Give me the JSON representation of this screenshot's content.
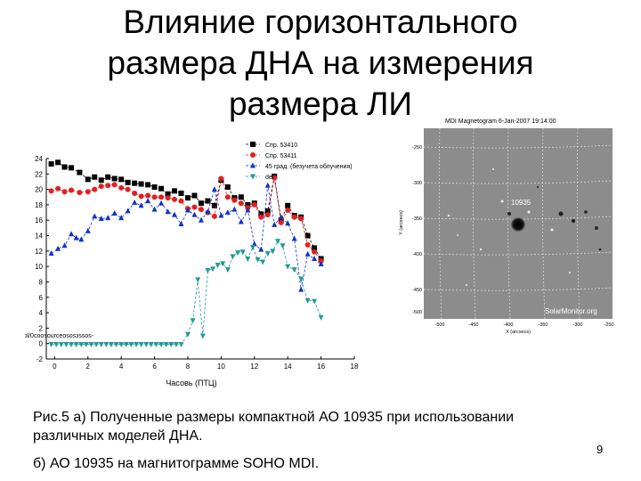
{
  "slide": {
    "title_lines": [
      "Влияние горизонтального",
      "размера ДНА  на измерения",
      "размера ЛИ"
    ],
    "caption_line1": "Рис.5 а) Полученные размеры компактной АО 10935 при использовании",
    "caption_line2": "различных моделей ДНА.",
    "caption_line3": "б) АО 10935 на магнитограмме SOHO MDI.",
    "page_number": "9"
  },
  "magnetogram": {
    "title": "MDI Magnetogram  6-Jan-2007 19:14:00",
    "region_label": "10935",
    "watermark": "SolarMonitor.org",
    "y_axis_label": "Y (arcsecs)",
    "x_axis_label": "X (arcsecs)",
    "y_ticks": [
      "-250",
      "-300",
      "-350",
      "-400",
      "-450",
      "-500"
    ],
    "x_ticks": [
      "-500",
      "-450",
      "-400",
      "-350",
      "-300",
      "-250"
    ]
  },
  "chart_data": {
    "type": "scatter",
    "xlabel": "Часовь (ПТЦ)",
    "ylabel": "",
    "xlim": [
      -0.5,
      18
    ],
    "ylim": [
      -2,
      24
    ],
    "x_ticks": [
      0,
      2,
      4,
      6,
      8,
      10,
      12,
      14,
      16,
      18
    ],
    "x_tick_labels": [
      "0",
      "2",
      "4",
      "6",
      "8",
      "10",
      "12",
      "14",
      "16",
      "18"
    ],
    "y_ticks": [
      -2,
      0,
      2,
      4,
      6,
      8,
      10,
      12,
      14,
      16,
      18,
      20,
      22,
      24
    ],
    "y_tick_labels": [
      "-2",
      "0",
      "2",
      "4",
      "6",
      "8",
      "10",
      "12",
      "14",
      "16",
      "18",
      "20",
      "22",
      "24"
    ],
    "legend_position": "top-right",
    "inline_label": "Sol/0сооsourceоsоsзssоs-",
    "series": [
      {
        "name": "Спр. 53410",
        "color": "#000000",
        "marker": "square",
        "x": [
          -0.2,
          0.2,
          0.6,
          1.0,
          1.5,
          2.0,
          2.4,
          2.8,
          3.2,
          3.6,
          4.0,
          4.4,
          4.8,
          5.2,
          5.6,
          6.0,
          6.4,
          6.8,
          7.2,
          7.6,
          8.0,
          8.4,
          8.8,
          9.2,
          9.6,
          10.0,
          10.4,
          10.8,
          11.2,
          11.6,
          12.0,
          12.4,
          12.8,
          13.2,
          13.6,
          14.0,
          14.4,
          14.8,
          15.2,
          15.6,
          16.0
        ],
        "y": [
          23.3,
          23.5,
          22.9,
          22.8,
          22.2,
          21.3,
          21.6,
          21.2,
          21.6,
          21.4,
          21.3,
          20.9,
          20.8,
          20.7,
          20.6,
          20.3,
          20.1,
          19.4,
          19.8,
          19.5,
          18.9,
          19.2,
          18.2,
          18.5,
          17.9,
          21.2,
          20.3,
          18.9,
          19.0,
          18.0,
          18.2,
          16.8,
          17.2,
          21.7,
          16.0,
          17.9,
          16.6,
          16.4,
          14.0,
          12.4,
          11.0
        ]
      },
      {
        "name": "Спр. 53411",
        "color": "#e02020",
        "marker": "circle",
        "x": [
          -0.2,
          0.2,
          0.6,
          1.0,
          1.5,
          2.0,
          2.4,
          2.8,
          3.2,
          3.6,
          4.0,
          4.4,
          4.8,
          5.2,
          5.6,
          6.0,
          6.4,
          6.8,
          7.2,
          7.6,
          8.0,
          8.4,
          8.8,
          9.2,
          9.6,
          10.0,
          10.4,
          10.8,
          11.2,
          11.6,
          12.0,
          12.4,
          12.8,
          13.2,
          13.6,
          14.0,
          14.4,
          14.8,
          15.2,
          15.6,
          16.0
        ],
        "y": [
          19.8,
          20.1,
          19.7,
          19.9,
          19.6,
          19.7,
          20.0,
          20.4,
          20.5,
          20.6,
          20.2,
          20.0,
          19.5,
          19.1,
          19.2,
          19.0,
          19.0,
          18.9,
          18.7,
          18.5,
          17.5,
          17.7,
          17.4,
          17.0,
          16.5,
          21.4,
          19.0,
          18.6,
          18.2,
          17.6,
          18.0,
          16.4,
          16.7,
          21.5,
          15.7,
          17.3,
          16.4,
          16.2,
          12.8,
          11.9,
          10.7
        ]
      },
      {
        "name": "45 град. (безучета облучения)",
        "color": "#1030d0",
        "marker": "triangle-up",
        "x": [
          -0.2,
          0.2,
          0.6,
          1.0,
          1.3,
          1.6,
          2.0,
          2.4,
          2.8,
          3.2,
          3.6,
          4.0,
          4.4,
          4.8,
          5.2,
          5.6,
          6.0,
          6.4,
          6.8,
          7.2,
          7.6,
          8.0,
          8.4,
          8.8,
          9.2,
          9.6,
          10.0,
          10.4,
          10.8,
          11.2,
          11.6,
          12.0,
          12.4,
          12.8,
          13.2,
          13.6,
          14.0,
          14.4,
          14.8,
          15.2,
          15.6,
          16.0
        ],
        "y": [
          11.7,
          12.3,
          12.7,
          14.2,
          13.7,
          13.5,
          14.6,
          16.5,
          16.2,
          16.3,
          16.9,
          16.3,
          17.2,
          18.3,
          17.9,
          18.5,
          17.4,
          18.2,
          17.1,
          16.7,
          15.5,
          17.3,
          16.7,
          16.0,
          17.1,
          20.0,
          16.6,
          17.0,
          17.4,
          15.8,
          17.3,
          12.9,
          12.2,
          20.5,
          15.4,
          16.4,
          15.6,
          13.6,
          7.0,
          11.6,
          11.0,
          10.3
        ]
      },
      {
        "name": "def",
        "color": "#229a96",
        "marker": "triangle-down",
        "x": [
          -0.2,
          0.1,
          0.4,
          0.7,
          1.0,
          1.3,
          1.6,
          1.9,
          2.2,
          2.5,
          2.8,
          3.1,
          3.4,
          3.7,
          4.0,
          4.3,
          4.6,
          4.9,
          5.2,
          5.5,
          5.8,
          6.1,
          6.4,
          6.7,
          7.0,
          7.3,
          7.6,
          8.0,
          8.3,
          8.6,
          8.9,
          9.2,
          9.5,
          9.8,
          10.1,
          10.4,
          10.7,
          11.0,
          11.3,
          11.6,
          11.9,
          12.2,
          12.5,
          12.8,
          13.1,
          13.4,
          13.7,
          14.0,
          14.4,
          14.8,
          15.2,
          15.6,
          16.0
        ],
        "y": [
          -0.1,
          -0.1,
          -0.1,
          -0.1,
          -0.1,
          -0.1,
          -0.1,
          -0.1,
          -0.1,
          -0.1,
          -0.1,
          -0.1,
          -0.1,
          -0.1,
          -0.1,
          -0.1,
          -0.1,
          -0.1,
          -0.1,
          -0.1,
          -0.1,
          -0.1,
          -0.1,
          -0.1,
          -0.1,
          -0.1,
          -0.1,
          1.2,
          3.0,
          8.3,
          1.0,
          9.5,
          9.7,
          10.2,
          10.4,
          9.6,
          11.3,
          11.8,
          11.9,
          11.0,
          12.5,
          10.9,
          10.6,
          11.7,
          12.0,
          13.3,
          12.7,
          10.0,
          9.6,
          8.4,
          5.6,
          5.5,
          3.4
        ]
      }
    ]
  }
}
